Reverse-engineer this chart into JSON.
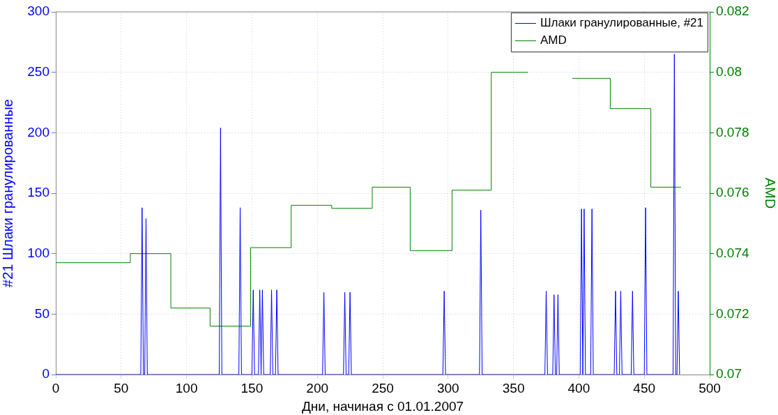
{
  "chart_data": {
    "type": "line",
    "xlabel": "Дни, начиная с 01.01.2007",
    "ylabel": "#21 Шлаки гранулированные",
    "y2label": "AMD",
    "xlim": [
      0,
      500
    ],
    "xticks": [
      0,
      50,
      100,
      150,
      200,
      250,
      300,
      350,
      400,
      450,
      500
    ],
    "ylim": [
      0,
      300
    ],
    "yticks": [
      0,
      50,
      100,
      150,
      200,
      250,
      300
    ],
    "y2lim": [
      0.07,
      0.082
    ],
    "y2ticks": [
      0.07,
      0.072,
      0.074,
      0.076,
      0.078,
      0.08,
      0.082
    ],
    "grid": true,
    "legend": "top right",
    "marker": "none",
    "line_style": "solid",
    "series": [
      {
        "name": "Шлаки гранулированные, #21",
        "type": "line",
        "color": "#0000ff",
        "x": [
          0,
          65,
          66,
          67,
          68,
          69,
          70,
          125,
          126,
          127,
          140,
          141,
          142,
          150,
          151,
          152,
          155,
          156,
          157,
          158,
          159,
          164,
          165,
          166,
          168,
          169,
          170,
          204,
          205,
          206,
          220,
          221,
          222,
          224,
          225,
          226,
          296,
          297,
          298,
          324,
          325,
          326,
          374,
          375,
          376,
          380,
          381,
          382,
          383,
          384,
          385,
          401,
          402,
          403,
          404,
          405,
          409,
          410,
          411,
          427,
          428,
          429,
          431,
          432,
          433,
          440,
          441,
          442,
          450,
          451,
          452,
          472,
          473,
          474,
          475,
          476,
          477
        ],
        "values": [
          0,
          0,
          138,
          0,
          0,
          129,
          0,
          0,
          204,
          0,
          0,
          138,
          0,
          0,
          70,
          0,
          0,
          70,
          0,
          70,
          0,
          0,
          70,
          0,
          0,
          70,
          0,
          0,
          68,
          0,
          0,
          68,
          0,
          0,
          68,
          0,
          0,
          69,
          0,
          0,
          136,
          0,
          0,
          69,
          0,
          0,
          66,
          0,
          0,
          66,
          0,
          0,
          137,
          0,
          137,
          0,
          0,
          137,
          0,
          0,
          69,
          0,
          0,
          69,
          0,
          0,
          69,
          0,
          0,
          138,
          0,
          0,
          265,
          0,
          0,
          69,
          0
        ]
      },
      {
        "name": "AMD",
        "type": "step",
        "axis": "y2",
        "color": "#008000",
        "x": [
          0,
          57,
          88,
          118,
          149,
          180,
          211,
          242,
          271,
          303,
          333,
          361,
          362,
          395,
          424,
          455,
          478
        ],
        "values": [
          0.0737,
          0.074,
          0.0722,
          0.0716,
          0.0742,
          0.0756,
          0.0755,
          0.0762,
          0.0741,
          0.0761,
          0.08,
          0.08,
          null,
          0.0798,
          0.0788,
          0.0762,
          0.0762
        ]
      }
    ]
  }
}
